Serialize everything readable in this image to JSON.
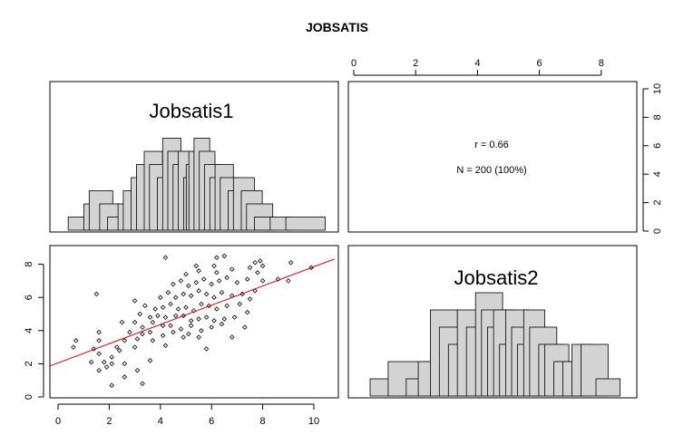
{
  "title": "JOBSATIS",
  "chart_data": {
    "type": "scatter",
    "layout": "pairs-panels 2x2",
    "variables": [
      "Jobsatis1",
      "Jobsatis2"
    ],
    "top_axis_ticks": [
      "0",
      "2",
      "4",
      "6",
      "8"
    ],
    "right_axis_ticks": [
      "0",
      "2",
      "4",
      "6",
      "8",
      "10"
    ],
    "left_axis_ticks": [
      "0",
      "2",
      "4",
      "6",
      "8"
    ],
    "bottom_axis_ticks": [
      "0",
      "2",
      "4",
      "6",
      "8",
      "10"
    ],
    "correlation": {
      "r_label": "r = 0.66",
      "n_label": "N = 200 (100%)"
    },
    "regression_line": {
      "intercept": 2.05,
      "slope": 0.58,
      "color": "#e00000"
    },
    "jobsatis1_xlim": [
      -0.2,
      10.8
    ],
    "jobsatis2_range": [
      0,
      8.6
    ],
    "jobsatis1_hist": [
      [
        0.5,
        1.4,
        1
      ],
      [
        1.1,
        1.8,
        2
      ],
      [
        1.3,
        2.2,
        3
      ],
      [
        1.7,
        2.5,
        2
      ],
      [
        2.0,
        2.9,
        1
      ],
      [
        2.4,
        3.0,
        2
      ],
      [
        2.6,
        3.5,
        3
      ],
      [
        2.9,
        3.7,
        4
      ],
      [
        3.1,
        3.9,
        5
      ],
      [
        3.4,
        4.1,
        6
      ],
      [
        3.6,
        4.4,
        5
      ],
      [
        3.9,
        4.6,
        4
      ],
      [
        4.1,
        4.8,
        7
      ],
      [
        4.3,
        5.0,
        6
      ],
      [
        4.5,
        5.2,
        5
      ],
      [
        4.7,
        5.3,
        6
      ],
      [
        4.9,
        5.5,
        4
      ],
      [
        5.0,
        5.6,
        5
      ],
      [
        5.1,
        5.7,
        6
      ],
      [
        5.3,
        5.9,
        7
      ],
      [
        5.5,
        6.1,
        6
      ],
      [
        5.7,
        6.3,
        5
      ],
      [
        5.9,
        6.6,
        4
      ],
      [
        6.1,
        6.8,
        5
      ],
      [
        6.3,
        7.0,
        4
      ],
      [
        6.6,
        7.3,
        3
      ],
      [
        6.8,
        7.6,
        4
      ],
      [
        7.1,
        7.9,
        3
      ],
      [
        7.3,
        8.3,
        2
      ],
      [
        7.6,
        8.4,
        1
      ],
      [
        8.2,
        9.0,
        1
      ],
      [
        8.8,
        10.3,
        1
      ]
    ],
    "jobsatis2_hist": [
      [
        0.3,
        1.5,
        1
      ],
      [
        0.9,
        2.3,
        2
      ],
      [
        1.5,
        2.1,
        1
      ],
      [
        1.9,
        2.7,
        2
      ],
      [
        2.3,
        3.2,
        5
      ],
      [
        2.6,
        3.5,
        4
      ],
      [
        2.9,
        3.8,
        3
      ],
      [
        3.2,
        4.0,
        5
      ],
      [
        3.5,
        4.3,
        4
      ],
      [
        3.8,
        4.7,
        6
      ],
      [
        4.0,
        4.8,
        5
      ],
      [
        4.2,
        5.0,
        4
      ],
      [
        4.4,
        5.2,
        5
      ],
      [
        4.6,
        5.4,
        3
      ],
      [
        4.8,
        5.6,
        5
      ],
      [
        5.0,
        5.8,
        4
      ],
      [
        5.2,
        6.0,
        3
      ],
      [
        5.4,
        6.1,
        5
      ],
      [
        5.6,
        6.5,
        4
      ],
      [
        5.9,
        6.7,
        3
      ],
      [
        6.1,
        6.9,
        3
      ],
      [
        6.4,
        7.2,
        2
      ],
      [
        6.7,
        7.5,
        2
      ],
      [
        7.0,
        7.7,
        3
      ],
      [
        7.3,
        8.2,
        3
      ],
      [
        7.8,
        8.6,
        1
      ]
    ],
    "points": [
      [
        2.1,
        0.7
      ],
      [
        3.3,
        0.8
      ],
      [
        2.6,
        1.2
      ],
      [
        1.6,
        1.6
      ],
      [
        1.9,
        1.8
      ],
      [
        3.1,
        1.6
      ],
      [
        1.3,
        2.1
      ],
      [
        1.8,
        2.1
      ],
      [
        2.1,
        2.0
      ],
      [
        2.6,
        2.0
      ],
      [
        3.6,
        2.2
      ],
      [
        2.1,
        2.4
      ],
      [
        1.6,
        2.6
      ],
      [
        2.4,
        2.8
      ],
      [
        1.4,
        2.9
      ],
      [
        0.6,
        3.0
      ],
      [
        2.3,
        3.0
      ],
      [
        3.0,
        3.0
      ],
      [
        0.7,
        3.4
      ],
      [
        1.6,
        3.4
      ],
      [
        2.6,
        3.4
      ],
      [
        3.1,
        3.5
      ],
      [
        3.7,
        3.4
      ],
      [
        4.2,
        3.1
      ],
      [
        4.9,
        3.6
      ],
      [
        5.8,
        2.9
      ],
      [
        1.6,
        3.9
      ],
      [
        2.8,
        3.9
      ],
      [
        3.3,
        3.8
      ],
      [
        3.6,
        3.9
      ],
      [
        4.1,
        3.7
      ],
      [
        4.5,
        3.9
      ],
      [
        5.1,
        3.8
      ],
      [
        5.5,
        3.6
      ],
      [
        2.5,
        4.5
      ],
      [
        3.0,
        4.5
      ],
      [
        3.3,
        4.2
      ],
      [
        3.7,
        4.5
      ],
      [
        4.1,
        4.3
      ],
      [
        4.4,
        4.3
      ],
      [
        4.8,
        4.1
      ],
      [
        5.2,
        4.3
      ],
      [
        5.6,
        4.0
      ],
      [
        6.0,
        4.2
      ],
      [
        6.4,
        4.4
      ],
      [
        6.8,
        3.6
      ],
      [
        7.3,
        4.2
      ],
      [
        3.2,
        5.0
      ],
      [
        3.6,
        4.8
      ],
      [
        3.9,
        4.9
      ],
      [
        4.2,
        4.8
      ],
      [
        4.6,
        4.9
      ],
      [
        4.9,
        4.9
      ],
      [
        5.2,
        4.6
      ],
      [
        5.5,
        4.7
      ],
      [
        5.8,
        4.8
      ],
      [
        6.1,
        4.6
      ],
      [
        6.5,
        4.7
      ],
      [
        6.9,
        4.8
      ],
      [
        7.4,
        5.1
      ],
      [
        3.4,
        5.5
      ],
      [
        3.8,
        5.3
      ],
      [
        4.1,
        5.4
      ],
      [
        4.4,
        5.6
      ],
      [
        4.7,
        5.3
      ],
      [
        5.0,
        5.4
      ],
      [
        5.3,
        5.2
      ],
      [
        5.6,
        5.6
      ],
      [
        5.9,
        5.5
      ],
      [
        6.2,
        5.3
      ],
      [
        6.6,
        5.5
      ],
      [
        7.1,
        5.6
      ],
      [
        7.5,
        5.9
      ],
      [
        1.5,
        6.2
      ],
      [
        3.0,
        5.8
      ],
      [
        4.0,
        6.0
      ],
      [
        4.3,
        6.3
      ],
      [
        4.6,
        6.0
      ],
      [
        4.9,
        6.2
      ],
      [
        5.2,
        6.1
      ],
      [
        5.5,
        6.4
      ],
      [
        5.8,
        6.2
      ],
      [
        6.1,
        6.0
      ],
      [
        6.4,
        6.3
      ],
      [
        6.8,
        6.1
      ],
      [
        7.2,
        6.2
      ],
      [
        7.7,
        6.4
      ],
      [
        4.5,
        6.8
      ],
      [
        4.8,
        7.0
      ],
      [
        5.1,
        6.7
      ],
      [
        5.4,
        6.9
      ],
      [
        5.7,
        7.1
      ],
      [
        6.0,
        6.8
      ],
      [
        6.3,
        7.0
      ],
      [
        6.6,
        7.2
      ],
      [
        7.0,
        6.9
      ],
      [
        7.4,
        7.1
      ],
      [
        8.0,
        7.0
      ],
      [
        5.0,
        7.4
      ],
      [
        5.5,
        7.6
      ],
      [
        6.2,
        7.5
      ],
      [
        6.8,
        7.7
      ],
      [
        7.5,
        7.8
      ],
      [
        5.4,
        7.9
      ],
      [
        6.1,
        7.9
      ],
      [
        7.7,
        8.1
      ],
      [
        7.9,
        8.2
      ],
      [
        8.0,
        7.9
      ],
      [
        4.2,
        8.4
      ],
      [
        6.2,
        8.4
      ],
      [
        6.5,
        8.5
      ],
      [
        9.1,
        8.1
      ],
      [
        9.9,
        7.8
      ],
      [
        8.6,
        7.1
      ],
      [
        9.0,
        7.0
      ],
      [
        7.8,
        7.5
      ]
    ]
  }
}
